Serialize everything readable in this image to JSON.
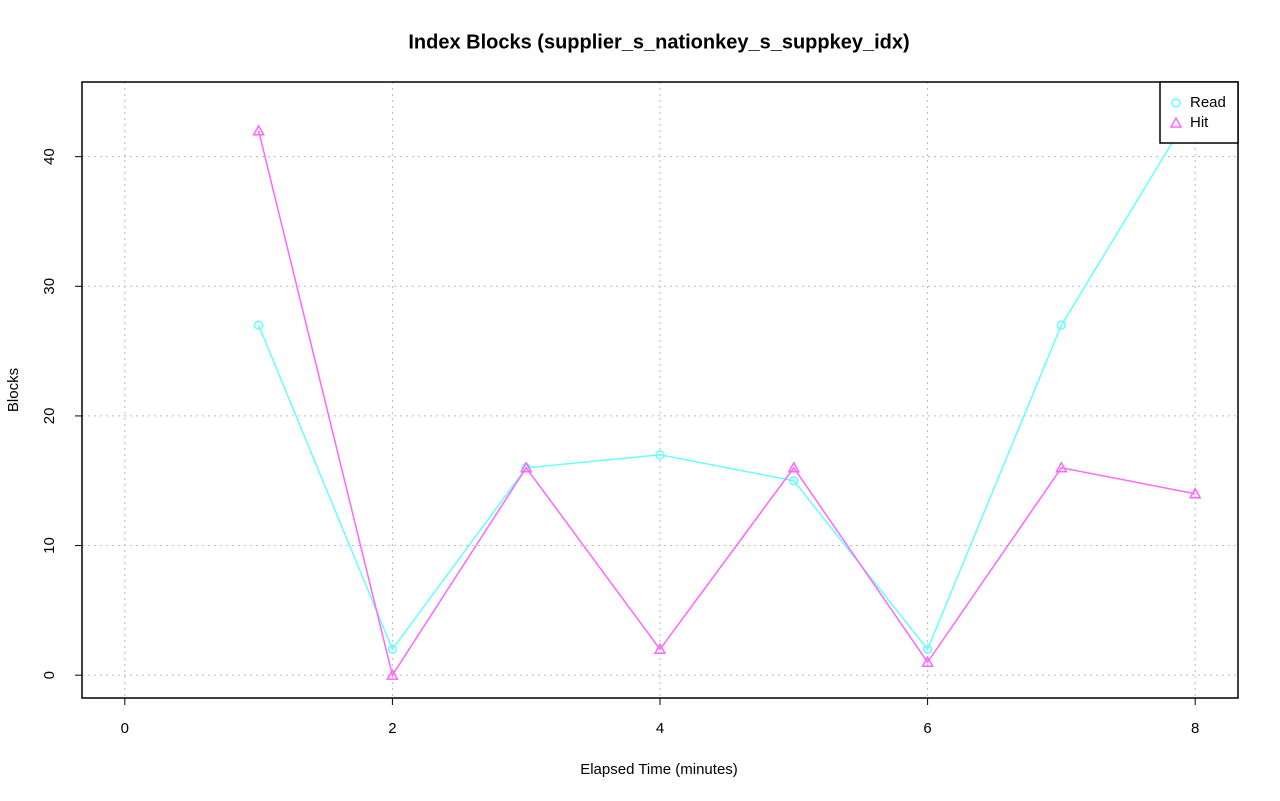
{
  "chart_data": {
    "type": "line",
    "title": "Index Blocks (supplier_s_nationkey_s_suppkey_idx)",
    "xlabel": "Elapsed Time (minutes)",
    "ylabel": "Blocks",
    "x": [
      1,
      2,
      3,
      4,
      5,
      6,
      7,
      8
    ],
    "series": [
      {
        "name": "Read",
        "color": "#66ffff",
        "marker": "circle",
        "values": [
          27,
          2,
          16,
          17,
          15,
          2,
          27,
          44
        ]
      },
      {
        "name": "Hit",
        "color": "#ff66ff",
        "marker": "triangle",
        "values": [
          42,
          0,
          16,
          2,
          16,
          1,
          16,
          14
        ]
      }
    ],
    "xlim": [
      -0.32,
      8.32
    ],
    "xticks": [
      0,
      2,
      4,
      6,
      8
    ],
    "ylim": [
      -1.76,
      45.76
    ],
    "yticks": [
      0,
      10,
      20,
      30,
      40
    ],
    "grid": true,
    "legend": "topright"
  }
}
